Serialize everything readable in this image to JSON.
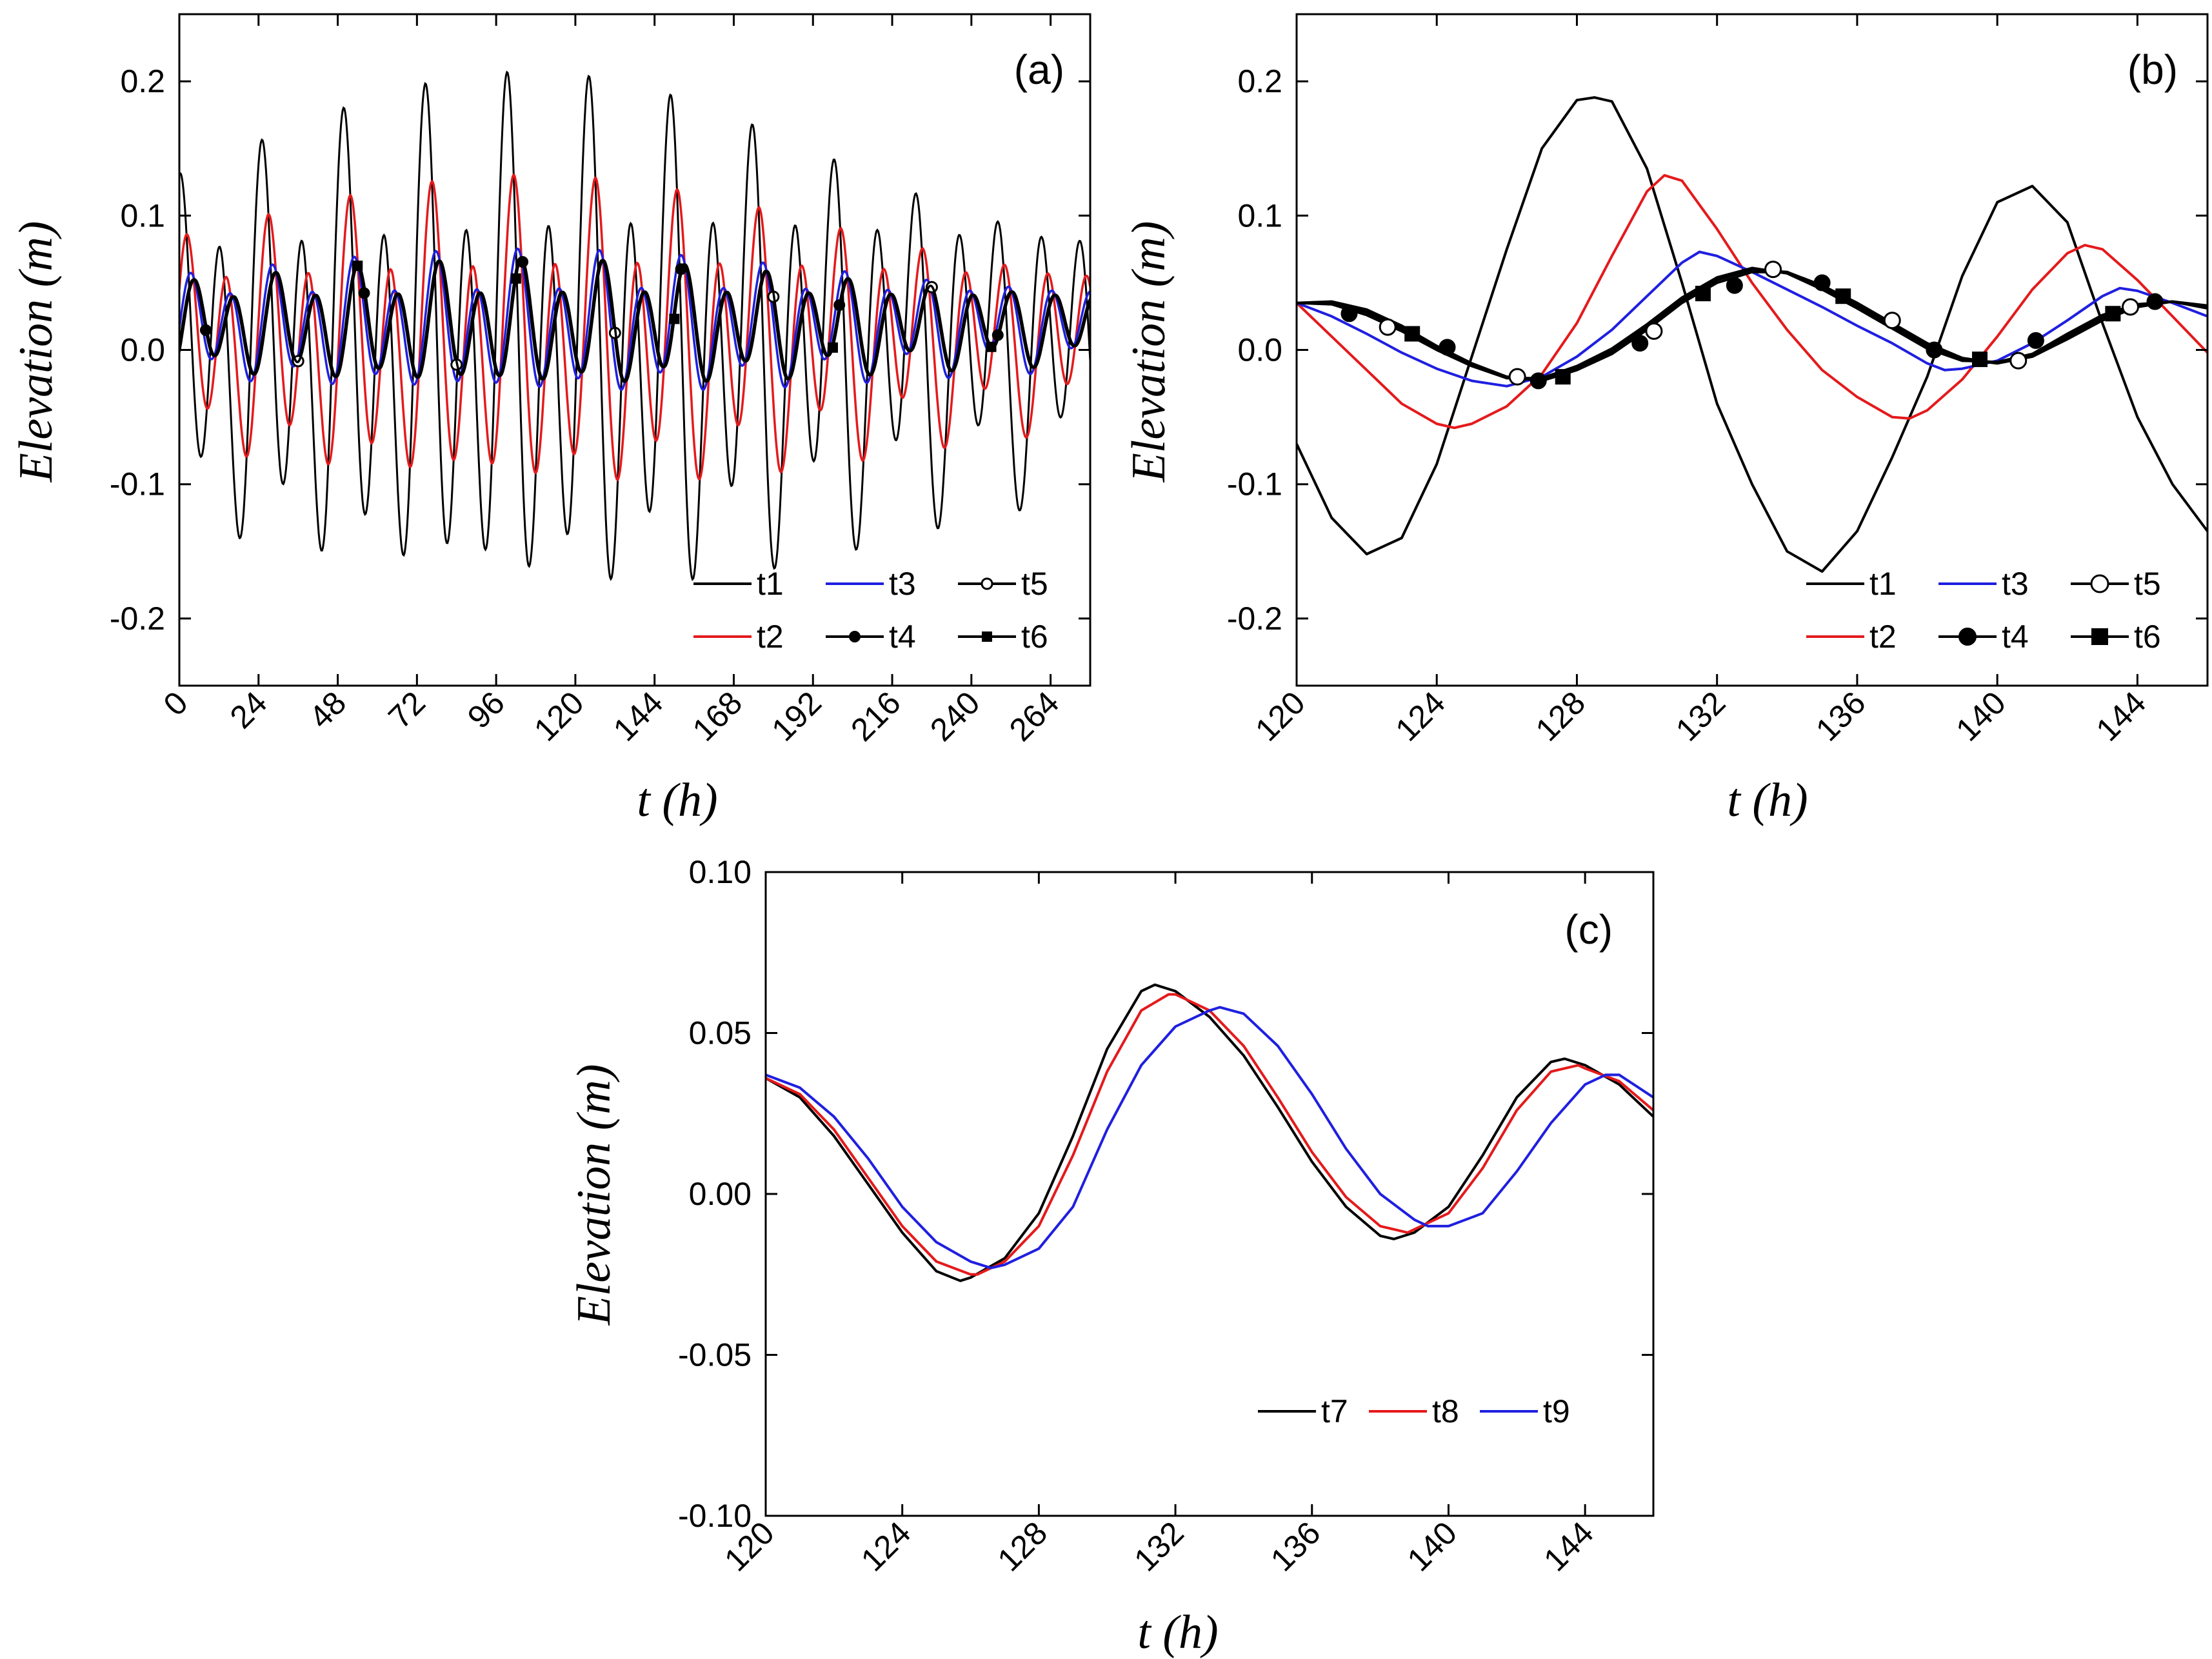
{
  "figure": {
    "panels": [
      "a",
      "b",
      "c"
    ]
  },
  "chart_data": [
    {
      "id": "a",
      "type": "line",
      "panel_label": "(a)",
      "xlabel": "t (h)",
      "ylabel": "Elevation (m)",
      "xlim": [
        0,
        276
      ],
      "ylim": [
        -0.25,
        0.25
      ],
      "xticks": [
        0,
        24,
        48,
        72,
        96,
        120,
        144,
        168,
        192,
        216,
        240,
        264
      ],
      "xtick_labels": [
        "0",
        "24",
        "48",
        "72",
        "96",
        "120",
        "144",
        "168",
        "192",
        "216",
        "240",
        "264"
      ],
      "yticks": [
        -0.2,
        -0.1,
        0.0,
        0.1,
        0.2
      ],
      "ytick_labels": [
        "-0.2",
        "-0.1",
        "0.0",
        "0.1",
        "0.2"
      ],
      "legend_position": "bottom-right",
      "series": [
        {
          "name": "t1",
          "color": "#000000",
          "marker": "tick",
          "model": {
            "offset": 0.0,
            "semidiurnal": 0.115,
            "diurnal": 0.045,
            "phase_hours": 0.0,
            "spring_neap": 0.3
          }
        },
        {
          "name": "t2",
          "color": "#e41a1c",
          "marker": "tick",
          "model": {
            "offset": 0.006,
            "semidiurnal": 0.07,
            "diurnal": 0.026,
            "phase_hours": 2.0,
            "spring_neap": 0.3
          }
        },
        {
          "name": "t3",
          "color": "#1f1fe0",
          "marker": "tick",
          "model": {
            "offset": 0.018,
            "semidiurnal": 0.034,
            "diurnal": 0.012,
            "phase_hours": 3.2,
            "spring_neap": 0.25
          }
        },
        {
          "name": "t4",
          "color": "#000000",
          "marker": "filled-circle",
          "model": {
            "offset": 0.018,
            "semidiurnal": 0.03,
            "diurnal": 0.01,
            "phase_hours": 4.0,
            "spring_neap": 0.25
          }
        },
        {
          "name": "t5",
          "color": "#000000",
          "marker": "open-circle",
          "model": {
            "offset": 0.018,
            "semidiurnal": 0.03,
            "diurnal": 0.01,
            "phase_hours": 4.2,
            "spring_neap": 0.25
          }
        },
        {
          "name": "t6",
          "color": "#000000",
          "marker": "filled-square",
          "model": {
            "offset": 0.018,
            "semidiurnal": 0.03,
            "diurnal": 0.01,
            "phase_hours": 4.4,
            "spring_neap": 0.25
          }
        }
      ]
    },
    {
      "id": "b",
      "type": "line",
      "panel_label": "(b)",
      "xlabel": "t (h)",
      "ylabel": "Elevation (m)",
      "xlim": [
        120,
        146
      ],
      "ylim": [
        -0.25,
        0.25
      ],
      "xticks": [
        120,
        124,
        128,
        132,
        136,
        140,
        144
      ],
      "xtick_labels": [
        "120",
        "124",
        "128",
        "132",
        "136",
        "140",
        "144"
      ],
      "yticks": [
        -0.2,
        -0.1,
        0.0,
        0.1,
        0.2
      ],
      "ytick_labels": [
        "-0.2",
        "-0.1",
        "0.0",
        "0.1",
        "0.2"
      ],
      "legend_position": "bottom-right",
      "series": [
        {
          "name": "t1",
          "color": "#000000",
          "marker": "none",
          "x": [
            120,
            121,
            122,
            123,
            124,
            125,
            126,
            127,
            128,
            128.5,
            129,
            130,
            131,
            132,
            133,
            134,
            135,
            136,
            137,
            138,
            139,
            140,
            141,
            142,
            143,
            144,
            145,
            146
          ],
          "y": [
            -0.07,
            -0.125,
            -0.152,
            -0.14,
            -0.085,
            -0.005,
            0.075,
            0.15,
            0.186,
            0.188,
            0.185,
            0.135,
            0.05,
            -0.04,
            -0.1,
            -0.15,
            -0.165,
            -0.135,
            -0.08,
            -0.02,
            0.055,
            0.11,
            0.122,
            0.095,
            0.02,
            -0.05,
            -0.1,
            -0.135
          ]
        },
        {
          "name": "t2",
          "color": "#e41a1c",
          "marker": "none",
          "x": [
            120,
            121,
            122,
            123,
            124,
            124.5,
            125,
            126,
            127,
            128,
            129,
            130,
            130.5,
            131,
            132,
            133,
            134,
            135,
            136,
            137,
            137.5,
            138,
            139,
            140,
            141,
            142,
            142.5,
            143,
            144,
            145,
            146
          ],
          "y": [
            0.035,
            0.01,
            -0.015,
            -0.04,
            -0.055,
            -0.058,
            -0.055,
            -0.042,
            -0.018,
            0.02,
            0.07,
            0.118,
            0.13,
            0.126,
            0.09,
            0.05,
            0.015,
            -0.015,
            -0.035,
            -0.05,
            -0.051,
            -0.045,
            -0.022,
            0.01,
            0.045,
            0.072,
            0.078,
            0.075,
            0.052,
            0.025,
            -0.002
          ]
        },
        {
          "name": "t3",
          "color": "#1f1fe0",
          "marker": "none",
          "x": [
            120,
            121,
            122,
            123,
            124,
            125,
            126,
            127,
            128,
            129,
            130,
            131,
            131.5,
            132,
            133,
            134,
            135,
            136,
            137,
            138,
            138.5,
            139,
            140,
            141,
            142,
            143,
            143.5,
            144,
            145,
            146
          ],
          "y": [
            0.035,
            0.025,
            0.012,
            -0.002,
            -0.014,
            -0.023,
            -0.027,
            -0.02,
            -0.005,
            0.015,
            0.04,
            0.065,
            0.073,
            0.07,
            0.058,
            0.045,
            0.032,
            0.018,
            0.005,
            -0.01,
            -0.015,
            -0.014,
            -0.008,
            0.005,
            0.022,
            0.04,
            0.046,
            0.044,
            0.035,
            0.025
          ]
        },
        {
          "name": "t4",
          "color": "#000000",
          "marker": "filled-circle",
          "x": [
            120,
            121,
            122,
            123,
            124,
            125,
            126,
            127,
            128,
            129,
            130,
            131,
            132,
            133,
            134,
            135,
            136,
            137,
            138,
            139,
            140,
            141,
            142,
            143,
            144,
            145,
            146
          ],
          "y": [
            0.035,
            0.036,
            0.03,
            0.018,
            0.003,
            -0.01,
            -0.02,
            -0.023,
            -0.015,
            -0.003,
            0.015,
            0.035,
            0.05,
            0.058,
            0.058,
            0.048,
            0.035,
            0.02,
            0.005,
            -0.006,
            -0.01,
            -0.005,
            0.008,
            0.022,
            0.032,
            0.036,
            0.033
          ]
        },
        {
          "name": "t5",
          "color": "#000000",
          "marker": "open-circle",
          "x": [
            120,
            121,
            122,
            123,
            124,
            125,
            126,
            127,
            128,
            129,
            130,
            131,
            132,
            133,
            134,
            135,
            136,
            137,
            138,
            139,
            140,
            141,
            142,
            143,
            144,
            145,
            146
          ],
          "y": [
            0.035,
            0.035,
            0.028,
            0.016,
            0.002,
            -0.011,
            -0.02,
            -0.022,
            -0.014,
            -0.001,
            0.017,
            0.037,
            0.052,
            0.06,
            0.058,
            0.047,
            0.033,
            0.018,
            0.003,
            -0.007,
            -0.01,
            -0.004,
            0.01,
            0.024,
            0.033,
            0.036,
            0.032
          ]
        },
        {
          "name": "t6",
          "color": "#000000",
          "marker": "filled-square",
          "x": [
            120,
            121,
            122,
            123,
            124,
            125,
            126,
            127,
            128,
            129,
            130,
            131,
            132,
            133,
            134,
            135,
            136,
            137,
            138,
            139,
            140,
            141,
            142,
            143,
            144,
            145,
            146
          ],
          "y": [
            0.035,
            0.034,
            0.026,
            0.014,
            0.0,
            -0.012,
            -0.021,
            -0.021,
            -0.012,
            0.001,
            0.019,
            0.039,
            0.054,
            0.061,
            0.057,
            0.045,
            0.031,
            0.016,
            0.001,
            -0.008,
            -0.009,
            -0.003,
            0.012,
            0.026,
            0.034,
            0.036,
            0.031
          ]
        }
      ],
      "marker_points": {
        "t4": [
          [
            121.5,
            0.027
          ],
          [
            124.3,
            0.002
          ],
          [
            126.9,
            -0.023
          ],
          [
            129.8,
            0.005
          ],
          [
            132.5,
            0.048
          ],
          [
            135,
            0.05
          ],
          [
            138.2,
            0.0
          ],
          [
            141.1,
            0.007
          ],
          [
            144.5,
            0.036
          ]
        ],
        "t5": [
          [
            122.6,
            0.017
          ],
          [
            126.3,
            -0.02
          ],
          [
            130.2,
            0.014
          ],
          [
            133.6,
            0.06
          ],
          [
            137,
            0.022
          ],
          [
            140.6,
            -0.008
          ],
          [
            143.8,
            0.032
          ]
        ],
        "t6": [
          [
            123.3,
            0.012
          ],
          [
            127.6,
            -0.02
          ],
          [
            131.6,
            0.042
          ],
          [
            135.6,
            0.04
          ],
          [
            139.5,
            -0.007
          ],
          [
            143.3,
            0.027
          ]
        ]
      }
    },
    {
      "id": "c",
      "type": "line",
      "panel_label": "(c)",
      "xlabel": "t (h)",
      "ylabel": "Elevation (m)",
      "xlim": [
        120,
        146
      ],
      "ylim": [
        -0.1,
        0.1
      ],
      "xticks": [
        120,
        124,
        128,
        132,
        136,
        140,
        144
      ],
      "xtick_labels": [
        "120",
        "124",
        "128",
        "132",
        "136",
        "140",
        "144"
      ],
      "yticks": [
        -0.1,
        -0.05,
        0.0,
        0.05,
        0.1
      ],
      "ytick_labels": [
        "-0.10",
        "-0.05",
        "0.00",
        "0.05",
        "0.10"
      ],
      "legend_position": "bottom-right",
      "series": [
        {
          "name": "t7",
          "color": "#000000",
          "marker": "none",
          "x": [
            120,
            121,
            122,
            123,
            124,
            125,
            125.7,
            126,
            127,
            128,
            129,
            130,
            131,
            131.4,
            132,
            133,
            134,
            135,
            136,
            137,
            138,
            138.4,
            139,
            140,
            141,
            142,
            143,
            143.4,
            144,
            145,
            146
          ],
          "y": [
            0.036,
            0.03,
            0.018,
            0.003,
            -0.012,
            -0.024,
            -0.027,
            -0.026,
            -0.02,
            -0.006,
            0.018,
            0.045,
            0.063,
            0.065,
            0.063,
            0.055,
            0.043,
            0.027,
            0.01,
            -0.004,
            -0.013,
            -0.014,
            -0.012,
            -0.004,
            0.012,
            0.03,
            0.041,
            0.042,
            0.04,
            0.034,
            0.024
          ]
        },
        {
          "name": "t8",
          "color": "#e41a1c",
          "marker": "none",
          "x": [
            120,
            121,
            122,
            123,
            124,
            125,
            126,
            126.2,
            127,
            128,
            129,
            130,
            131,
            131.8,
            132,
            133,
            134,
            135,
            136,
            137,
            138,
            138.8,
            139,
            140,
            141,
            142,
            143,
            143.8,
            144,
            145,
            146
          ],
          "y": [
            0.036,
            0.031,
            0.02,
            0.005,
            -0.01,
            -0.021,
            -0.025,
            -0.025,
            -0.021,
            -0.01,
            0.012,
            0.038,
            0.057,
            0.062,
            0.062,
            0.057,
            0.046,
            0.03,
            0.013,
            -0.001,
            -0.01,
            -0.012,
            -0.011,
            -0.006,
            0.008,
            0.026,
            0.038,
            0.04,
            0.039,
            0.035,
            0.026
          ]
        },
        {
          "name": "t9",
          "color": "#1f1fe0",
          "marker": "none",
          "x": [
            120,
            121,
            122,
            123,
            124,
            125,
            126,
            126.6,
            127,
            128,
            129,
            130,
            131,
            132,
            133,
            133.3,
            134,
            135,
            136,
            137,
            138,
            139,
            139.4,
            140,
            141,
            142,
            143,
            144,
            144.6,
            145,
            146
          ],
          "y": [
            0.037,
            0.033,
            0.024,
            0.011,
            -0.004,
            -0.015,
            -0.021,
            -0.023,
            -0.022,
            -0.017,
            -0.004,
            0.02,
            0.04,
            0.052,
            0.057,
            0.058,
            0.056,
            0.046,
            0.031,
            0.014,
            0.0,
            -0.008,
            -0.01,
            -0.01,
            -0.006,
            0.007,
            0.022,
            0.034,
            0.037,
            0.037,
            0.03
          ]
        }
      ]
    }
  ]
}
